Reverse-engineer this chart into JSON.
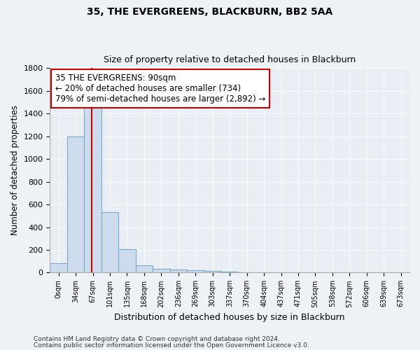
{
  "title1": "35, THE EVERGREENS, BLACKBURN, BB2 5AA",
  "title2": "Size of property relative to detached houses in Blackburn",
  "xlabel": "Distribution of detached houses by size in Blackburn",
  "ylabel": "Number of detached properties",
  "bar_labels": [
    "0sqm",
    "34sqm",
    "67sqm",
    "101sqm",
    "135sqm",
    "168sqm",
    "202sqm",
    "236sqm",
    "269sqm",
    "303sqm",
    "337sqm",
    "370sqm",
    "404sqm",
    "437sqm",
    "471sqm",
    "505sqm",
    "538sqm",
    "572sqm",
    "606sqm",
    "639sqm",
    "673sqm"
  ],
  "bar_values": [
    80,
    1200,
    1470,
    530,
    205,
    65,
    35,
    28,
    20,
    15,
    10,
    5,
    3,
    2,
    1,
    1,
    0,
    0,
    0,
    0,
    0
  ],
  "bar_color": "#ccdcec",
  "bar_edge_color": "#7aaaca",
  "vline_x": 1.92,
  "vline_color": "#cc0000",
  "ylim": [
    0,
    1800
  ],
  "yticks": [
    0,
    200,
    400,
    600,
    800,
    1000,
    1200,
    1400,
    1600,
    1800
  ],
  "annotation_text": "35 THE EVERGREENS: 90sqm\n← 20% of detached houses are smaller (734)\n79% of semi-detached houses are larger (2,892) →",
  "annotation_box_facecolor": "#ffffff",
  "annotation_box_edgecolor": "#cc0000",
  "footer1": "Contains HM Land Registry data © Crown copyright and database right 2024.",
  "footer2": "Contains public sector information licensed under the Open Government Licence v3.0.",
  "bg_color": "#edf2f7",
  "plot_bg_color": "#e8eef4",
  "grid_color": "#ffffff"
}
